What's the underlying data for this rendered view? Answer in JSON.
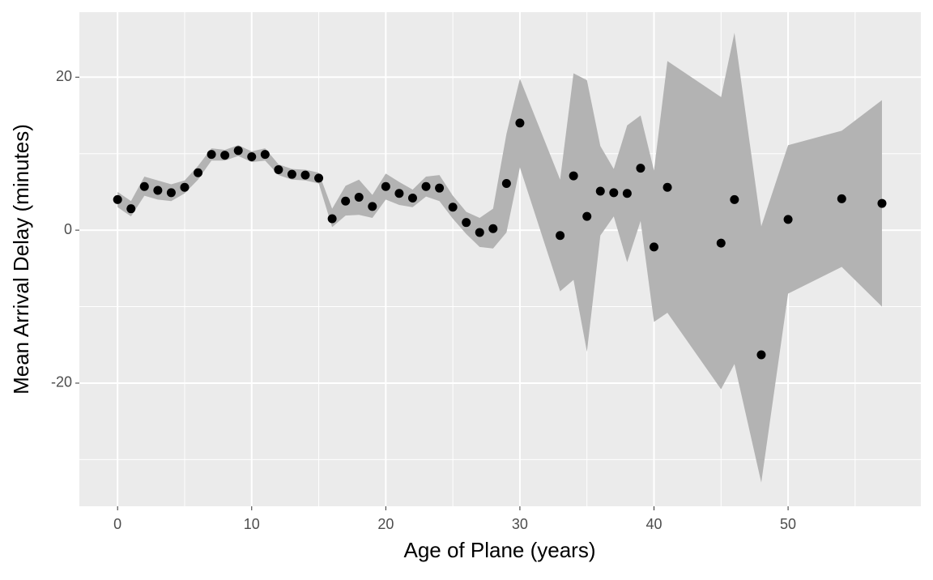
{
  "chart_data": {
    "type": "scatter",
    "x_label": "Age of Plane (years)",
    "y_label": "Mean Arrival Delay (minutes)",
    "x": [
      0,
      1,
      2,
      3,
      4,
      5,
      6,
      7,
      8,
      9,
      10,
      11,
      12,
      13,
      14,
      15,
      16,
      17,
      18,
      19,
      20,
      21,
      22,
      23,
      24,
      25,
      26,
      27,
      28,
      29,
      30,
      33,
      34,
      35,
      36,
      37,
      38,
      39,
      40,
      41,
      45,
      46,
      48,
      50,
      54,
      57
    ],
    "y": [
      4.0,
      2.8,
      5.7,
      5.2,
      4.9,
      5.6,
      7.5,
      9.9,
      9.8,
      10.4,
      9.6,
      9.9,
      7.9,
      7.3,
      7.2,
      6.8,
      1.5,
      3.8,
      4.3,
      3.1,
      5.7,
      4.8,
      4.2,
      5.7,
      5.5,
      3.0,
      1.0,
      -0.3,
      0.2,
      6.1,
      14.0,
      -0.7,
      7.1,
      1.8,
      5.1,
      4.9,
      4.8,
      8.1,
      -2.2,
      5.6,
      -1.7,
      4.0,
      -16.3,
      1.4,
      4.1,
      3.5
    ],
    "ymax": [
      5.0,
      3.8,
      7.0,
      6.5,
      6.0,
      6.5,
      8.4,
      10.7,
      10.5,
      11.1,
      10.3,
      10.7,
      8.6,
      8.0,
      7.9,
      7.5,
      2.8,
      5.8,
      6.6,
      4.6,
      7.4,
      6.3,
      5.3,
      7.0,
      7.2,
      4.5,
      2.4,
      1.6,
      2.8,
      12.6,
      19.8,
      6.6,
      20.5,
      19.6,
      11.0,
      8.0,
      13.7,
      15.0,
      7.8,
      22.1,
      17.4,
      25.8,
      0.5,
      11.1,
      13.0,
      17.0
    ],
    "ymin": [
      3.0,
      1.8,
      4.5,
      4.0,
      3.8,
      4.8,
      6.6,
      9.1,
      9.1,
      9.7,
      8.9,
      9.1,
      7.2,
      6.6,
      6.5,
      6.1,
      0.4,
      1.9,
      2.0,
      1.6,
      4.0,
      3.3,
      3.0,
      4.4,
      3.8,
      1.5,
      -0.5,
      -2.2,
      -2.4,
      -0.3,
      8.2,
      -8.0,
      -6.5,
      -15.9,
      -0.7,
      1.8,
      -4.2,
      1.2,
      -12.0,
      -10.8,
      -20.8,
      -17.5,
      -33.0,
      -8.3,
      -4.8,
      -10.0
    ],
    "point_color": "#000000",
    "ribbon_color": "#b3b3b3",
    "xlim": [
      -2.85,
      59.9
    ],
    "ylim": [
      -36.1,
      28.5
    ],
    "xticks": [
      0,
      10,
      20,
      30,
      40,
      50
    ],
    "yticks": [
      -20,
      0,
      20
    ],
    "xminor": [
      5,
      15,
      25,
      35,
      45,
      55
    ],
    "yminor": [
      -30,
      -10,
      10
    ],
    "grid": true
  }
}
